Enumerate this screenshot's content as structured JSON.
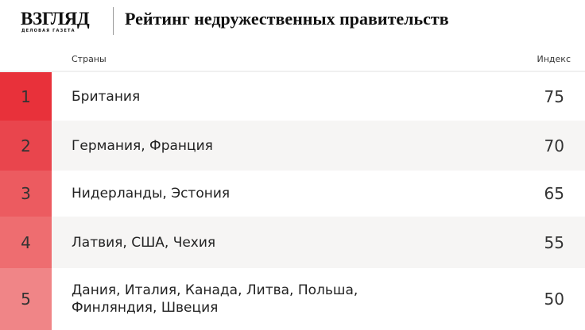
{
  "header": {
    "logo": "ВЗГЛЯД",
    "logo_sub": "ДЕЛОВАЯ ГАЗЕТА",
    "title": "Рейтинг недружественных правительств"
  },
  "columns": {
    "country": "Страны",
    "index": "Индекс"
  },
  "rows": [
    {
      "rank": "1",
      "countries": "Британия",
      "index": "75",
      "color": "#e8313a",
      "bg": "#ffffff"
    },
    {
      "rank": "2",
      "countries": "Германия, Франция",
      "index": "70",
      "color": "#e9454d",
      "bg": "#f6f5f4"
    },
    {
      "rank": "3",
      "countries": "Нидерланды, Эстония",
      "index": "65",
      "color": "#ec5b60",
      "bg": "#ffffff"
    },
    {
      "rank": "4",
      "countries": "Латвия, США, Чехия",
      "index": "55",
      "color": "#ee6d70",
      "bg": "#f6f5f4"
    },
    {
      "rank": "5",
      "countries": "Дания, Италия, Канада, Литва, Польша, Финляндия, Швеция",
      "index": "50",
      "color": "#f08587",
      "bg": "#ffffff"
    }
  ]
}
